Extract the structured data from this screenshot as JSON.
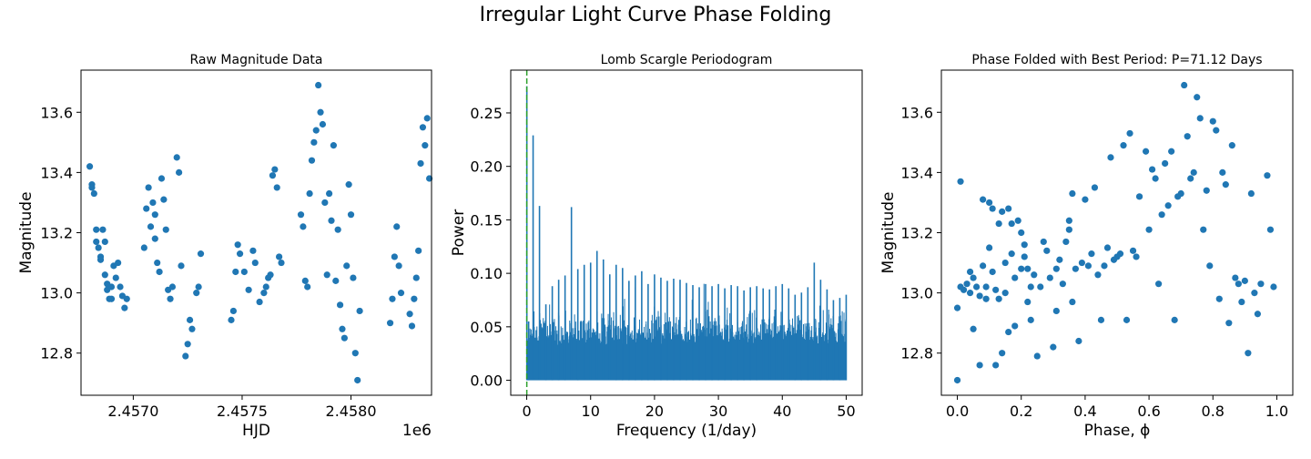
{
  "figure": {
    "suptitle": "Irregular Light Curve Phase Folding",
    "accent": "#1f77b4",
    "marker_color": "#2077b4",
    "vline_color": "#2ca02c"
  },
  "chart_data": [
    {
      "type": "scatter",
      "title": "Raw Magnitude Data",
      "xlabel": "HJD",
      "ylabel": "Magnitude",
      "x_offset_label": "1e6",
      "xlim": [
        2.45676,
        2.45837
      ],
      "ylim": [
        12.66,
        13.74
      ],
      "xticks": [
        2.457,
        2.4575,
        2.458
      ],
      "xtick_labels": [
        "2.4570",
        "2.4575",
        "2.4580"
      ],
      "yticks": [
        12.8,
        13.0,
        13.2,
        13.4,
        13.6
      ],
      "ytick_labels": [
        "12.8",
        "13.0",
        "13.2",
        "13.4",
        "13.6"
      ],
      "points": [
        [
          2.4568,
          13.42
        ],
        [
          2.45681,
          13.36
        ],
        [
          2.45681,
          13.35
        ],
        [
          2.45682,
          13.33
        ],
        [
          2.45683,
          13.21
        ],
        [
          2.45683,
          13.17
        ],
        [
          2.45684,
          13.15
        ],
        [
          2.45685,
          13.12
        ],
        [
          2.45685,
          13.11
        ],
        [
          2.45686,
          13.21
        ],
        [
          2.45687,
          13.17
        ],
        [
          2.45687,
          13.06
        ],
        [
          2.45688,
          13.03
        ],
        [
          2.45688,
          13.01
        ],
        [
          2.45689,
          12.98
        ],
        [
          2.4569,
          13.02
        ],
        [
          2.4569,
          12.98
        ],
        [
          2.45691,
          13.09
        ],
        [
          2.45692,
          13.05
        ],
        [
          2.45693,
          13.1
        ],
        [
          2.45694,
          13.02
        ],
        [
          2.45695,
          12.99
        ],
        [
          2.45696,
          12.95
        ],
        [
          2.45697,
          12.98
        ],
        [
          2.45705,
          13.15
        ],
        [
          2.45706,
          13.28
        ],
        [
          2.45707,
          13.35
        ],
        [
          2.45708,
          13.22
        ],
        [
          2.45709,
          13.3
        ],
        [
          2.4571,
          13.26
        ],
        [
          2.4571,
          13.18
        ],
        [
          2.45711,
          13.1
        ],
        [
          2.45712,
          13.07
        ],
        [
          2.45713,
          13.38
        ],
        [
          2.45714,
          13.31
        ],
        [
          2.45715,
          13.21
        ],
        [
          2.45716,
          13.01
        ],
        [
          2.45717,
          12.98
        ],
        [
          2.45718,
          13.02
        ],
        [
          2.4572,
          13.45
        ],
        [
          2.45721,
          13.4
        ],
        [
          2.45722,
          13.09
        ],
        [
          2.45724,
          12.79
        ],
        [
          2.45725,
          12.83
        ],
        [
          2.45726,
          12.91
        ],
        [
          2.45727,
          12.88
        ],
        [
          2.45729,
          13.0
        ],
        [
          2.4573,
          13.02
        ],
        [
          2.45731,
          13.13
        ],
        [
          2.45745,
          12.91
        ],
        [
          2.45746,
          12.94
        ],
        [
          2.45747,
          13.07
        ],
        [
          2.45748,
          13.16
        ],
        [
          2.45749,
          13.13
        ],
        [
          2.45751,
          13.07
        ],
        [
          2.45753,
          13.01
        ],
        [
          2.45755,
          13.14
        ],
        [
          2.45756,
          13.1
        ],
        [
          2.45758,
          12.97
        ],
        [
          2.4576,
          13.0
        ],
        [
          2.45761,
          13.02
        ],
        [
          2.45762,
          13.05
        ],
        [
          2.45763,
          13.06
        ],
        [
          2.45764,
          13.39
        ],
        [
          2.45765,
          13.41
        ],
        [
          2.45766,
          13.35
        ],
        [
          2.45767,
          13.12
        ],
        [
          2.45768,
          13.1
        ],
        [
          2.45777,
          13.26
        ],
        [
          2.45778,
          13.22
        ],
        [
          2.45779,
          13.04
        ],
        [
          2.4578,
          13.02
        ],
        [
          2.45781,
          13.33
        ],
        [
          2.45782,
          13.44
        ],
        [
          2.45783,
          13.5
        ],
        [
          2.45784,
          13.54
        ],
        [
          2.45785,
          13.69
        ],
        [
          2.45786,
          13.6
        ],
        [
          2.45787,
          13.56
        ],
        [
          2.45788,
          13.3
        ],
        [
          2.45789,
          13.06
        ],
        [
          2.4579,
          13.33
        ],
        [
          2.45791,
          13.24
        ],
        [
          2.45792,
          13.49
        ],
        [
          2.45793,
          13.04
        ],
        [
          2.45794,
          13.21
        ],
        [
          2.45795,
          12.96
        ],
        [
          2.45796,
          12.88
        ],
        [
          2.45797,
          12.85
        ],
        [
          2.45798,
          13.09
        ],
        [
          2.45799,
          13.36
        ],
        [
          2.458,
          13.26
        ],
        [
          2.45801,
          13.05
        ],
        [
          2.45802,
          12.8
        ],
        [
          2.45803,
          12.71
        ],
        [
          2.45804,
          12.94
        ],
        [
          2.45818,
          12.9
        ],
        [
          2.45819,
          12.98
        ],
        [
          2.4582,
          13.12
        ],
        [
          2.45821,
          13.22
        ],
        [
          2.45822,
          13.09
        ],
        [
          2.45823,
          13.0
        ],
        [
          2.45827,
          12.93
        ],
        [
          2.45828,
          12.89
        ],
        [
          2.45829,
          12.98
        ],
        [
          2.4583,
          13.05
        ],
        [
          2.45831,
          13.14
        ],
        [
          2.45832,
          13.43
        ],
        [
          2.45833,
          13.55
        ],
        [
          2.45834,
          13.49
        ],
        [
          2.45835,
          13.58
        ],
        [
          2.45836,
          13.38
        ]
      ],
      "grid": false
    },
    {
      "type": "line",
      "title": "Lomb Scargle Periodogram",
      "xlabel": "Frequency (1/day)",
      "ylabel": "Power",
      "xlim": [
        -2.5,
        52.5
      ],
      "ylim": [
        -0.014,
        0.29
      ],
      "xticks": [
        0,
        10,
        20,
        30,
        40,
        50
      ],
      "xtick_labels": [
        "0",
        "10",
        "20",
        "30",
        "40",
        "50"
      ],
      "yticks": [
        0.0,
        0.05,
        0.1,
        0.15,
        0.2,
        0.25
      ],
      "ytick_labels": [
        "0.00",
        "0.05",
        "0.10",
        "0.15",
        "0.20",
        "0.25"
      ],
      "best_frequency_line": 0.014,
      "noise_floor": 0.033,
      "peaks": [
        [
          0.02,
          0.275
        ],
        [
          0.3,
          0.055
        ],
        [
          1.0,
          0.229
        ],
        [
          2.0,
          0.163
        ],
        [
          3.0,
          0.071
        ],
        [
          4.0,
          0.088
        ],
        [
          5.0,
          0.094
        ],
        [
          6.0,
          0.098
        ],
        [
          7.0,
          0.162
        ],
        [
          8.0,
          0.104
        ],
        [
          9.0,
          0.108
        ],
        [
          10.0,
          0.11
        ],
        [
          11.0,
          0.121
        ],
        [
          12.0,
          0.113
        ],
        [
          13.0,
          0.099
        ],
        [
          14.0,
          0.108
        ],
        [
          15.0,
          0.105
        ],
        [
          16.0,
          0.093
        ],
        [
          17.0,
          0.098
        ],
        [
          18.0,
          0.102
        ],
        [
          19.0,
          0.09
        ],
        [
          20.0,
          0.099
        ],
        [
          21.0,
          0.096
        ],
        [
          22.0,
          0.093
        ],
        [
          23.0,
          0.095
        ],
        [
          24.0,
          0.094
        ],
        [
          25.0,
          0.091
        ],
        [
          26.0,
          0.089
        ],
        [
          27.0,
          0.087
        ],
        [
          28.0,
          0.09
        ],
        [
          29.0,
          0.088
        ],
        [
          30.0,
          0.09
        ],
        [
          31.0,
          0.086
        ],
        [
          32.0,
          0.089
        ],
        [
          33.0,
          0.088
        ],
        [
          34.0,
          0.084
        ],
        [
          35.0,
          0.087
        ],
        [
          36.0,
          0.088
        ],
        [
          37.0,
          0.086
        ],
        [
          38.0,
          0.085
        ],
        [
          39.0,
          0.088
        ],
        [
          40.0,
          0.09
        ],
        [
          41.0,
          0.086
        ],
        [
          42.0,
          0.08
        ],
        [
          43.0,
          0.082
        ],
        [
          44.0,
          0.087
        ],
        [
          45.0,
          0.11
        ],
        [
          46.0,
          0.094
        ],
        [
          47.0,
          0.085
        ],
        [
          48.0,
          0.075
        ],
        [
          49.0,
          0.077
        ],
        [
          50.0,
          0.08
        ]
      ],
      "grid": false
    },
    {
      "type": "scatter",
      "title": "Phase Folded with Best Period: P=71.12 Days",
      "xlabel": "Phase, ϕ",
      "ylabel": "Magnitude",
      "xlim": [
        -0.05,
        1.05
      ],
      "ylim": [
        12.66,
        13.74
      ],
      "xticks": [
        0.0,
        0.2,
        0.4,
        0.6,
        0.8,
        1.0
      ],
      "xtick_labels": [
        "0.0",
        "0.2",
        "0.4",
        "0.6",
        "0.8",
        "1.0"
      ],
      "yticks": [
        12.8,
        13.0,
        13.2,
        13.4,
        13.6
      ],
      "ytick_labels": [
        "12.8",
        "13.0",
        "13.2",
        "13.4",
        "13.6"
      ],
      "points": [
        [
          0.0,
          12.71
        ],
        [
          0.0,
          12.95
        ],
        [
          0.01,
          13.37
        ],
        [
          0.01,
          13.02
        ],
        [
          0.02,
          13.01
        ],
        [
          0.03,
          13.03
        ],
        [
          0.04,
          13.0
        ],
        [
          0.04,
          13.07
        ],
        [
          0.05,
          12.88
        ],
        [
          0.05,
          13.05
        ],
        [
          0.06,
          13.02
        ],
        [
          0.07,
          12.99
        ],
        [
          0.07,
          12.76
        ],
        [
          0.08,
          13.31
        ],
        [
          0.08,
          13.09
        ],
        [
          0.09,
          13.02
        ],
        [
          0.09,
          12.98
        ],
        [
          0.1,
          13.3
        ],
        [
          0.1,
          13.15
        ],
        [
          0.11,
          13.07
        ],
        [
          0.11,
          13.28
        ],
        [
          0.12,
          13.01
        ],
        [
          0.12,
          12.76
        ],
        [
          0.13,
          13.23
        ],
        [
          0.13,
          12.98
        ],
        [
          0.14,
          13.27
        ],
        [
          0.14,
          12.8
        ],
        [
          0.15,
          13.1
        ],
        [
          0.15,
          13.0
        ],
        [
          0.16,
          13.28
        ],
        [
          0.16,
          12.87
        ],
        [
          0.17,
          13.23
        ],
        [
          0.17,
          13.13
        ],
        [
          0.18,
          13.05
        ],
        [
          0.18,
          12.89
        ],
        [
          0.19,
          13.24
        ],
        [
          0.2,
          13.2
        ],
        [
          0.2,
          13.08
        ],
        [
          0.21,
          13.16
        ],
        [
          0.21,
          13.12
        ],
        [
          0.22,
          13.08
        ],
        [
          0.22,
          12.97
        ],
        [
          0.23,
          13.02
        ],
        [
          0.23,
          12.91
        ],
        [
          0.24,
          13.06
        ],
        [
          0.25,
          12.79
        ],
        [
          0.26,
          13.02
        ],
        [
          0.27,
          13.17
        ],
        [
          0.28,
          13.14
        ],
        [
          0.29,
          13.05
        ],
        [
          0.3,
          12.82
        ],
        [
          0.31,
          13.08
        ],
        [
          0.31,
          12.94
        ],
        [
          0.32,
          13.11
        ],
        [
          0.33,
          13.03
        ],
        [
          0.34,
          13.17
        ],
        [
          0.35,
          13.24
        ],
        [
          0.35,
          13.21
        ],
        [
          0.36,
          13.33
        ],
        [
          0.36,
          12.97
        ],
        [
          0.37,
          13.08
        ],
        [
          0.38,
          12.84
        ],
        [
          0.39,
          13.1
        ],
        [
          0.4,
          13.31
        ],
        [
          0.41,
          13.09
        ],
        [
          0.42,
          13.13
        ],
        [
          0.43,
          13.35
        ],
        [
          0.44,
          13.06
        ],
        [
          0.45,
          12.91
        ],
        [
          0.46,
          13.09
        ],
        [
          0.47,
          13.15
        ],
        [
          0.48,
          13.45
        ],
        [
          0.49,
          13.11
        ],
        [
          0.5,
          13.12
        ],
        [
          0.51,
          13.13
        ],
        [
          0.52,
          13.49
        ],
        [
          0.53,
          12.91
        ],
        [
          0.54,
          13.53
        ],
        [
          0.55,
          13.14
        ],
        [
          0.56,
          13.12
        ],
        [
          0.57,
          13.32
        ],
        [
          0.59,
          13.47
        ],
        [
          0.6,
          13.21
        ],
        [
          0.61,
          13.41
        ],
        [
          0.62,
          13.38
        ],
        [
          0.63,
          13.03
        ],
        [
          0.64,
          13.26
        ],
        [
          0.65,
          13.43
        ],
        [
          0.66,
          13.29
        ],
        [
          0.67,
          13.47
        ],
        [
          0.68,
          12.91
        ],
        [
          0.69,
          13.32
        ],
        [
          0.7,
          13.33
        ],
        [
          0.71,
          13.69
        ],
        [
          0.72,
          13.52
        ],
        [
          0.73,
          13.38
        ],
        [
          0.74,
          13.4
        ],
        [
          0.75,
          13.65
        ],
        [
          0.76,
          13.58
        ],
        [
          0.77,
          13.21
        ],
        [
          0.78,
          13.34
        ],
        [
          0.79,
          13.09
        ],
        [
          0.8,
          13.57
        ],
        [
          0.81,
          13.54
        ],
        [
          0.82,
          12.98
        ],
        [
          0.83,
          13.4
        ],
        [
          0.84,
          13.36
        ],
        [
          0.85,
          12.9
        ],
        [
          0.86,
          13.49
        ],
        [
          0.87,
          13.05
        ],
        [
          0.88,
          13.03
        ],
        [
          0.89,
          12.97
        ],
        [
          0.9,
          13.04
        ],
        [
          0.91,
          12.8
        ],
        [
          0.92,
          13.33
        ],
        [
          0.93,
          13.0
        ],
        [
          0.94,
          12.93
        ],
        [
          0.95,
          13.03
        ],
        [
          0.97,
          13.39
        ],
        [
          0.98,
          13.21
        ],
        [
          0.99,
          13.02
        ]
      ],
      "grid": false
    }
  ]
}
